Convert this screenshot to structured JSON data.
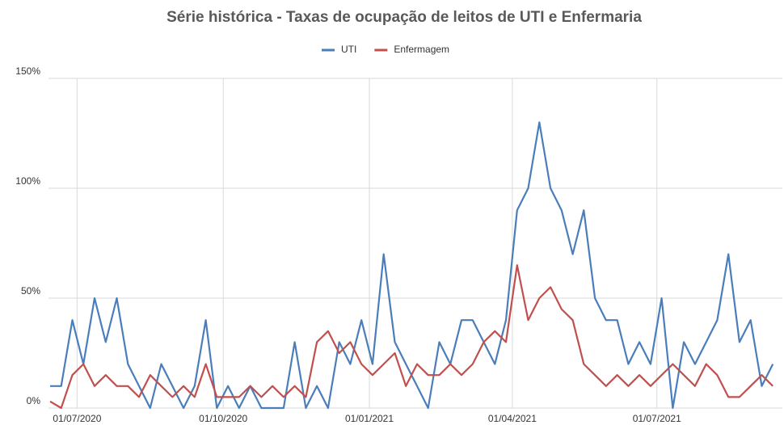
{
  "chart_data": {
    "type": "line",
    "title": "Série histórica - Taxas de ocupação de leitos de UTI e Enfermaria",
    "x": [
      "14/06/2020",
      "21/06/2020",
      "28/06/2020",
      "05/07/2020",
      "12/07/2020",
      "19/07/2020",
      "26/07/2020",
      "02/08/2020",
      "09/08/2020",
      "16/08/2020",
      "23/08/2020",
      "30/08/2020",
      "06/09/2020",
      "13/09/2020",
      "20/09/2020",
      "27/09/2020",
      "04/10/2020",
      "11/10/2020",
      "18/10/2020",
      "25/10/2020",
      "01/11/2020",
      "08/11/2020",
      "15/11/2020",
      "22/11/2020",
      "29/11/2020",
      "06/12/2020",
      "13/12/2020",
      "20/12/2020",
      "27/12/2020",
      "03/01/2021",
      "10/01/2021",
      "17/01/2021",
      "24/01/2021",
      "31/01/2021",
      "07/02/2021",
      "14/02/2021",
      "21/02/2021",
      "28/02/2021",
      "07/03/2021",
      "14/03/2021",
      "21/03/2021",
      "28/03/2021",
      "04/04/2021",
      "11/04/2021",
      "18/04/2021",
      "25/04/2021",
      "02/05/2021",
      "09/05/2021",
      "16/05/2021",
      "23/05/2021",
      "30/05/2021",
      "06/06/2021",
      "13/06/2021",
      "20/06/2021",
      "27/06/2021",
      "04/07/2021",
      "11/07/2021",
      "18/07/2021",
      "25/07/2021",
      "01/08/2021",
      "08/08/2021",
      "15/08/2021",
      "22/08/2021",
      "29/08/2021",
      "05/09/2021",
      "12/09/2021"
    ],
    "series": [
      {
        "name": "UTI",
        "color": "#4a7ebb",
        "values": [
          10,
          10,
          40,
          20,
          50,
          30,
          50,
          20,
          10,
          0,
          20,
          10,
          0,
          10,
          40,
          0,
          10,
          0,
          10,
          0,
          0,
          0,
          30,
          0,
          10,
          0,
          30,
          20,
          40,
          20,
          70,
          30,
          20,
          10,
          0,
          30,
          20,
          40,
          40,
          30,
          20,
          40,
          90,
          100,
          130,
          100,
          90,
          70,
          90,
          50,
          40,
          40,
          20,
          30,
          20,
          50,
          0,
          30,
          20,
          30,
          40,
          70,
          30,
          40,
          10,
          20
        ]
      },
      {
        "name": "Enfermagem",
        "color": "#c0504d",
        "values": [
          3,
          0,
          15,
          20,
          10,
          15,
          10,
          10,
          5,
          15,
          10,
          5,
          10,
          5,
          20,
          5,
          5,
          5,
          10,
          5,
          10,
          5,
          10,
          5,
          30,
          35,
          25,
          30,
          20,
          15,
          20,
          25,
          10,
          20,
          15,
          15,
          20,
          15,
          20,
          30,
          35,
          30,
          65,
          40,
          50,
          55,
          45,
          40,
          20,
          15,
          10,
          15,
          10,
          15,
          10,
          15,
          20,
          15,
          10,
          20,
          15,
          5,
          5,
          10,
          15,
          10
        ]
      }
    ],
    "xlim": [
      "13/06/2020",
      "18/09/2021"
    ],
    "xticks": [
      "01/07/2020",
      "01/10/2020",
      "01/01/2021",
      "01/04/2021",
      "01/07/2021"
    ],
    "ylim": [
      0,
      150
    ],
    "yticks": [
      {
        "value": 0,
        "label": "0%"
      },
      {
        "value": 50,
        "label": "50%"
      },
      {
        "value": 100,
        "label": "100%"
      },
      {
        "value": 150,
        "label": "150%"
      }
    ],
    "grid": true,
    "legend": "top"
  }
}
